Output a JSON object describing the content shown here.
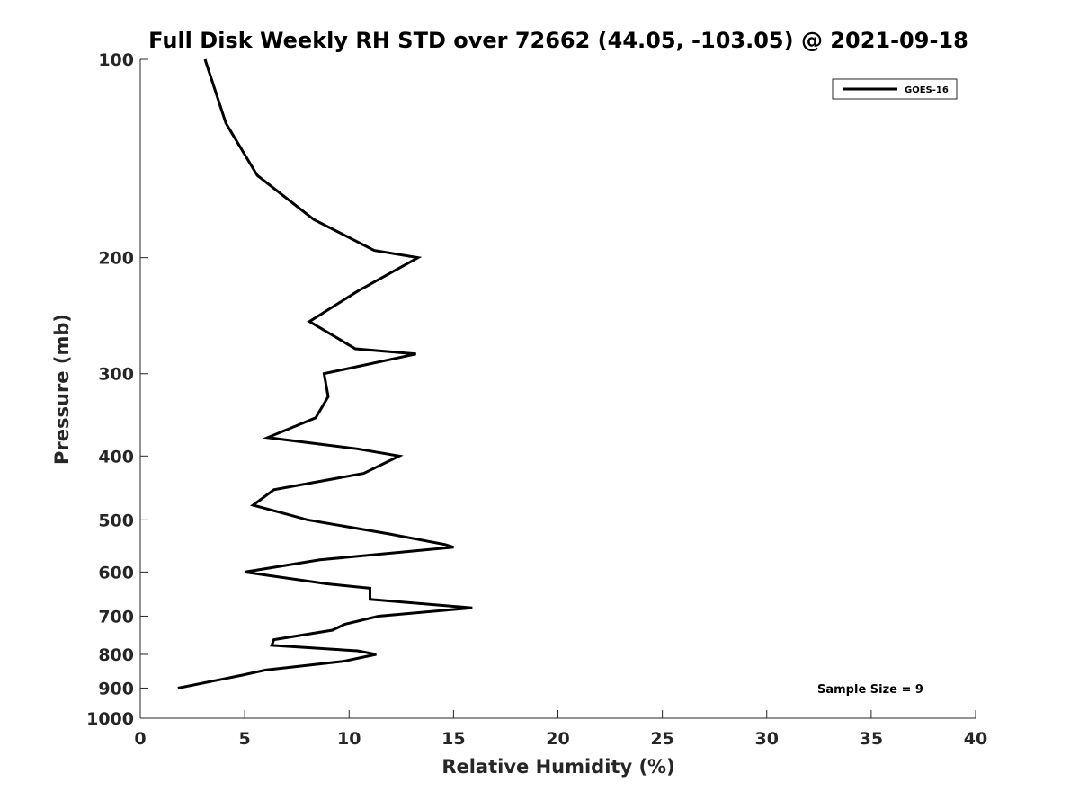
{
  "chart_data": {
    "type": "line",
    "title": "Full Disk Weekly RH STD over 72662 (44.05, -103.05) @ 2021-09-18",
    "xlabel": "Relative Humidity (%)",
    "ylabel": "Pressure (mb)",
    "xlim": [
      0,
      40
    ],
    "ylim": [
      100,
      1000
    ],
    "y_scale": "log",
    "y_reversed": true,
    "x_ticks": [
      0,
      5,
      10,
      15,
      20,
      25,
      30,
      35,
      40
    ],
    "y_ticks": [
      100,
      200,
      300,
      400,
      500,
      600,
      700,
      800,
      900,
      1000
    ],
    "grid": false,
    "legend_position": "top-right",
    "series": [
      {
        "name": "GOES-16",
        "color": "#000000",
        "points": [
          [
            3.1,
            100
          ],
          [
            4.1,
            125
          ],
          [
            5.6,
            150
          ],
          [
            8.3,
            175
          ],
          [
            11.2,
            195
          ],
          [
            13.3,
            200
          ],
          [
            10.4,
            225
          ],
          [
            8.1,
            250
          ],
          [
            10.3,
            275
          ],
          [
            13.2,
            280
          ],
          [
            8.8,
            300
          ],
          [
            9.0,
            325
          ],
          [
            8.4,
            350
          ],
          [
            6.1,
            375
          ],
          [
            10.4,
            390
          ],
          [
            12.4,
            400
          ],
          [
            10.7,
            425
          ],
          [
            6.4,
            450
          ],
          [
            5.4,
            475
          ],
          [
            7.0,
            490
          ],
          [
            8.0,
            500
          ],
          [
            11.9,
            525
          ],
          [
            14.6,
            545
          ],
          [
            15.0,
            550
          ],
          [
            8.6,
            575
          ],
          [
            5.0,
            600
          ],
          [
            8.9,
            625
          ],
          [
            11.0,
            635
          ],
          [
            11.0,
            660
          ],
          [
            15.9,
            680
          ],
          [
            11.4,
            700
          ],
          [
            9.8,
            720
          ],
          [
            9.2,
            735
          ],
          [
            6.4,
            760
          ],
          [
            6.3,
            775
          ],
          [
            10.4,
            790
          ],
          [
            11.3,
            800
          ],
          [
            9.7,
            820
          ],
          [
            6.0,
            845
          ],
          [
            4.9,
            860
          ],
          [
            1.8,
            900
          ]
        ]
      }
    ],
    "annotations": [
      "Sample Size = 9"
    ]
  }
}
